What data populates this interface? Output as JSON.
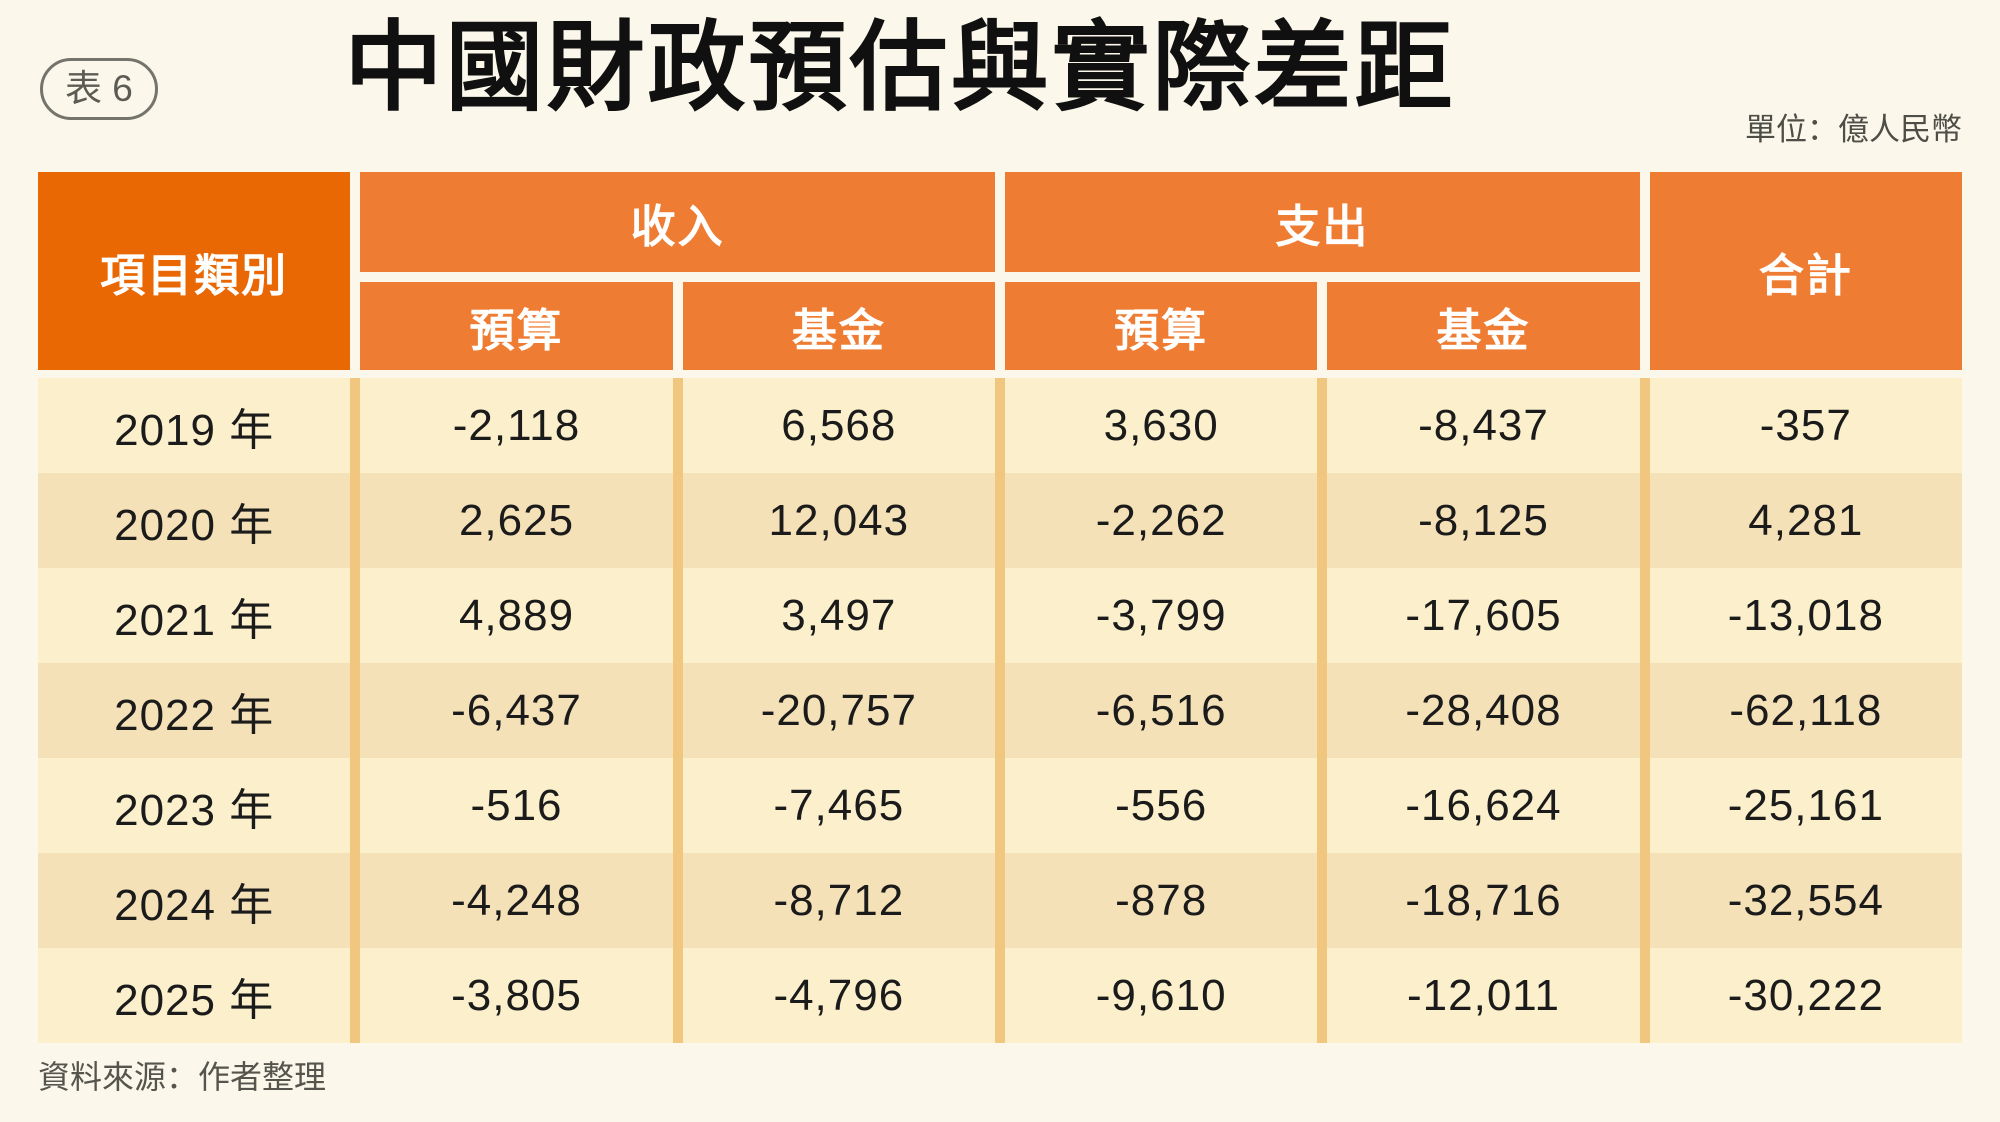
{
  "badge": {
    "label": "表 6"
  },
  "title": "中國財政預估與實際差距",
  "unit_label": "單位：億人民幣",
  "source_label": "資料來源：作者整理",
  "colors": {
    "background": "#FBF8EB",
    "header_orange_dark": "#E96803",
    "header_orange": "#EE7D33",
    "row_light": "#FBF0CB",
    "row_dark": "#F5E1B7",
    "divider_tan": "#F1C67E",
    "header_text": "#FFFFFF",
    "body_text": "#1B1B1B"
  },
  "table": {
    "corner_header": "項目類別",
    "groups": [
      {
        "label": "收入",
        "subcolumns": [
          "預算",
          "基金"
        ]
      },
      {
        "label": "支出",
        "subcolumns": [
          "預算",
          "基金"
        ]
      }
    ],
    "total_header": "合計",
    "rows": [
      {
        "cells": [
          "2019 年",
          "-2,118",
          "6,568",
          "3,630",
          "-8,437",
          "-357"
        ]
      },
      {
        "cells": [
          "2020 年",
          "2,625",
          "12,043",
          "-2,262",
          "-8,125",
          "4,281"
        ]
      },
      {
        "cells": [
          "2021 年",
          "4,889",
          "3,497",
          "-3,799",
          "-17,605",
          "-13,018"
        ]
      },
      {
        "cells": [
          "2022 年",
          "-6,437",
          "-20,757",
          "-6,516",
          "-28,408",
          "-62,118"
        ]
      },
      {
        "cells": [
          "2023 年",
          "-516",
          "-7,465",
          "-556",
          "-16,624",
          "-25,161"
        ]
      },
      {
        "cells": [
          "2024 年",
          "-4,248",
          "-8,712",
          "-878",
          "-18,716",
          "-32,554"
        ]
      },
      {
        "cells": [
          "2025 年",
          "-3,805",
          "-4,796",
          "-9,610",
          "-12,011",
          "-30,222"
        ]
      }
    ]
  },
  "chart_data": {
    "type": "table",
    "title": "中國財政預估與實際差距",
    "unit": "億人民幣",
    "columns": [
      "項目類別",
      "收入-預算",
      "收入-基金",
      "支出-預算",
      "支出-基金",
      "合計"
    ],
    "rows": [
      [
        "2019 年",
        -2118,
        6568,
        3630,
        -8437,
        -357
      ],
      [
        "2020 年",
        2625,
        12043,
        -2262,
        -8125,
        4281
      ],
      [
        "2021 年",
        4889,
        3497,
        -3799,
        -17605,
        -13018
      ],
      [
        "2022 年",
        -6437,
        -20757,
        -6516,
        -28408,
        -62118
      ],
      [
        "2023 年",
        -516,
        -7465,
        -556,
        -16624,
        -25161
      ],
      [
        "2024 年",
        -4248,
        -8712,
        -878,
        -18716,
        -32554
      ],
      [
        "2025 年",
        -3805,
        -4796,
        -9610,
        -12011,
        -30222
      ]
    ],
    "source": "資料來源：作者整理"
  }
}
